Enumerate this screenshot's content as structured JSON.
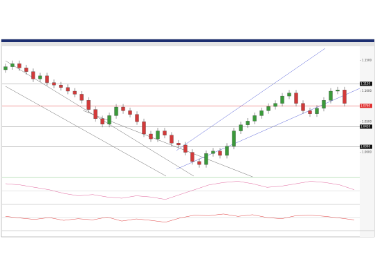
{
  "chart_data": {
    "type": "candlestick",
    "ylim": [
      0.96,
      1.17
    ],
    "yticks": [
      {
        "value": 1.0,
        "label": "1.0000"
      },
      {
        "value": 1.05,
        "label": "1.0500"
      },
      {
        "value": 1.1,
        "label": "1.1000"
      },
      {
        "value": 1.15,
        "label": "1.1500"
      }
    ],
    "up_color": "#3a9a3a",
    "down_color": "#d23a3a",
    "open": [
      1.135,
      1.14,
      1.145,
      1.138,
      1.132,
      1.12,
      1.125,
      1.114,
      1.11,
      1.106,
      1.1,
      1.095,
      1.085,
      1.07,
      1.055,
      1.046,
      1.06,
      1.074,
      1.068,
      1.062,
      1.05,
      1.03,
      1.022,
      1.035,
      1.028,
      1.015,
      1.012,
      1.0,
      0.985,
      0.98,
      0.998,
      1.002,
      0.995,
      1.01,
      1.035,
      1.045,
      1.051,
      1.06,
      1.068,
      1.075,
      1.08,
      1.092,
      1.097,
      1.08,
      1.068,
      1.063,
      1.072,
      1.085,
      1.1,
      1.102
    ],
    "high": [
      1.145,
      1.15,
      1.15,
      1.143,
      1.137,
      1.13,
      1.13,
      1.119,
      1.115,
      1.111,
      1.105,
      1.1,
      1.09,
      1.075,
      1.06,
      1.065,
      1.079,
      1.079,
      1.073,
      1.067,
      1.055,
      1.035,
      1.04,
      1.04,
      1.033,
      1.02,
      1.017,
      1.005,
      0.99,
      1.003,
      1.007,
      1.007,
      1.015,
      1.04,
      1.05,
      1.056,
      1.065,
      1.073,
      1.08,
      1.085,
      1.097,
      1.102,
      1.102,
      1.085,
      1.073,
      1.077,
      1.09,
      1.105,
      1.107,
      1.107
    ],
    "low": [
      1.13,
      1.135,
      1.133,
      1.127,
      1.115,
      1.115,
      1.109,
      1.105,
      1.101,
      1.095,
      1.09,
      1.08,
      1.065,
      1.05,
      1.041,
      1.041,
      1.055,
      1.063,
      1.057,
      1.045,
      1.025,
      1.017,
      1.017,
      1.023,
      1.01,
      1.007,
      0.995,
      0.98,
      0.975,
      0.975,
      0.993,
      0.99,
      0.99,
      1.005,
      1.03,
      1.04,
      1.046,
      1.055,
      1.063,
      1.07,
      1.075,
      1.087,
      1.075,
      1.063,
      1.058,
      1.058,
      1.067,
      1.08,
      1.095,
      1.075
    ],
    "close": [
      1.14,
      1.145,
      1.138,
      1.132,
      1.12,
      1.125,
      1.114,
      1.11,
      1.106,
      1.1,
      1.095,
      1.085,
      1.07,
      1.055,
      1.046,
      1.06,
      1.074,
      1.068,
      1.062,
      1.05,
      1.03,
      1.022,
      1.035,
      1.028,
      1.015,
      1.012,
      1.0,
      0.985,
      0.98,
      0.998,
      1.002,
      0.995,
      1.01,
      1.035,
      1.045,
      1.051,
      1.06,
      1.068,
      1.075,
      1.08,
      1.092,
      1.097,
      1.08,
      1.068,
      1.063,
      1.072,
      1.085,
      1.1,
      1.102,
      1.08
    ],
    "levels": [
      {
        "value": 1.112,
        "label": "1.1120",
        "color": "#888888"
      },
      {
        "value": 1.076,
        "label": "1.0760",
        "color": "#e03030"
      },
      {
        "value": 1.042,
        "label": "1.0420",
        "color": "#888888"
      },
      {
        "value": 1.009,
        "label": "1.0090",
        "color": "#888888"
      }
    ],
    "panes": [
      {
        "ylim": [
          -1,
          1
        ],
        "color": "#e0609a",
        "values": [
          0.6,
          0.5,
          0.3,
          0.1,
          -0.2,
          -0.4,
          -0.3,
          -0.5,
          -0.6,
          -0.4,
          -0.5,
          -0.7,
          -0.3,
          0.1,
          0.5,
          0.7,
          0.8,
          0.6,
          0.3,
          0.4,
          0.6,
          0.8,
          0.7,
          0.5,
          0.1
        ]
      },
      {
        "ylim": [
          0,
          100
        ],
        "color": "#e03a3a",
        "values": [
          55,
          48,
          42,
          50,
          38,
          45,
          40,
          52,
          35,
          44,
          38,
          30,
          48,
          60,
          58,
          65,
          55,
          62,
          50,
          45,
          58,
          60,
          55,
          48,
          40
        ]
      }
    ]
  }
}
